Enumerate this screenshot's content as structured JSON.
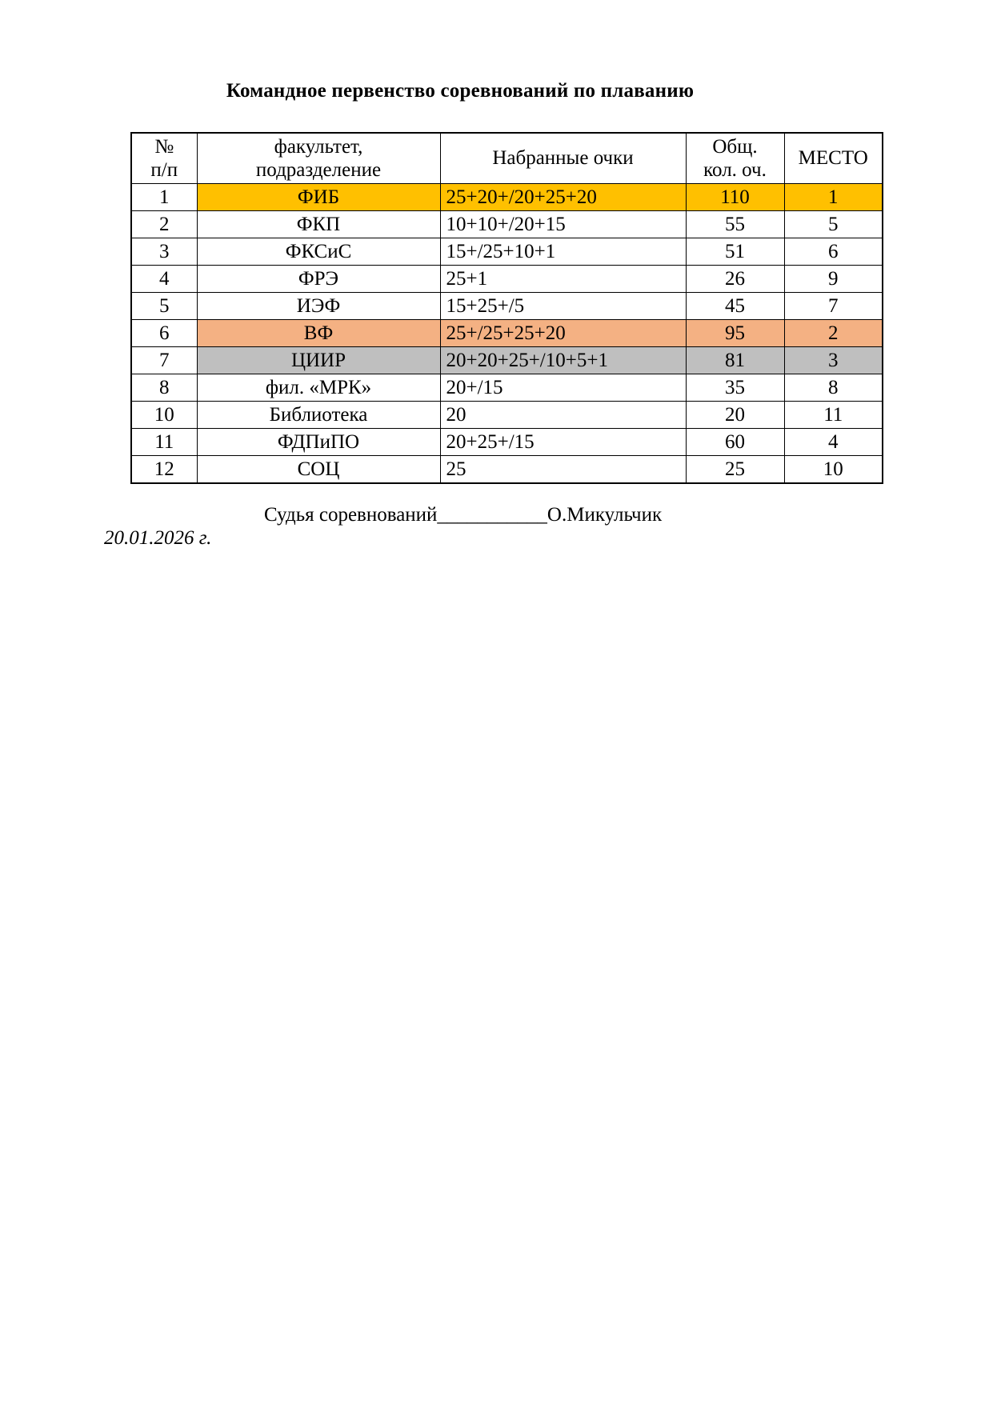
{
  "title": "Командное первенство соревнований по плаванию",
  "table": {
    "headers": {
      "num_line1": "№",
      "num_line2": "п/п",
      "faculty_line1": "факультет,",
      "faculty_line2": "подразделение",
      "points": "Набранные очки",
      "total_line1": "Общ.",
      "total_line2": "кол. оч.",
      "place": "МЕСТО"
    },
    "rows": [
      {
        "num": "1",
        "faculty": "ФИБ",
        "points": "25+20+/20+25+20",
        "total": "110",
        "place": "1",
        "highlight": "gold"
      },
      {
        "num": "2",
        "faculty": "ФКП",
        "points": "10+10+/20+15",
        "total": "55",
        "place": "5",
        "highlight": null
      },
      {
        "num": "3",
        "faculty": "ФКСиС",
        "points": "15+/25+10+1",
        "total": "51",
        "place": "6",
        "highlight": null
      },
      {
        "num": "4",
        "faculty": "ФРЭ",
        "points": "25+1",
        "total": "26",
        "place": "9",
        "highlight": null
      },
      {
        "num": "5",
        "faculty": "ИЭФ",
        "points": "15+25+/5",
        "total": "45",
        "place": "7",
        "highlight": null
      },
      {
        "num": "6",
        "faculty": "ВФ",
        "points": "25+/25+25+20",
        "total": "95",
        "place": "2",
        "highlight": "salmon"
      },
      {
        "num": "7",
        "faculty": "ЦИИР",
        "points": "20+20+25+/10+5+1",
        "total": "81",
        "place": "3",
        "highlight": "gray"
      },
      {
        "num": "8",
        "faculty": "фил. «МРК»",
        "points": "20+/15",
        "total": "35",
        "place": "8",
        "highlight": null
      },
      {
        "num": "10",
        "faculty": "Библиотека",
        "points": "20",
        "total": "20",
        "place": "11",
        "highlight": null
      },
      {
        "num": "11",
        "faculty": "ФДПиПО",
        "points": "20+25+/15",
        "total": "60",
        "place": "4",
        "highlight": null
      },
      {
        "num": "12",
        "faculty": "СОЦ",
        "points": "25",
        "total": "25",
        "place": "10",
        "highlight": null
      }
    ]
  },
  "colors": {
    "gold": "#FFC000",
    "salmon": "#F4B183",
    "gray": "#BFBFBF"
  },
  "footer": {
    "judge_line": "Судья соревнований___________О.Микульчик",
    "date_line": "20.01.2026 г."
  }
}
